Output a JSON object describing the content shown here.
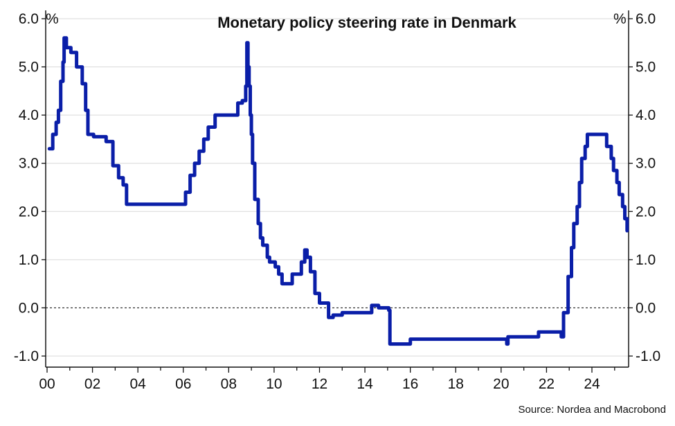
{
  "chart_data": {
    "type": "line",
    "title": "Monetary policy steering rate in Denmark",
    "source": "Source: Nordea and Macrobond",
    "y_unit_left": "%",
    "y_unit_right": "%",
    "ylim": [
      -1.0,
      6.0
    ],
    "y_ticks": [
      -1.0,
      0.0,
      1.0,
      2.0,
      3.0,
      4.0,
      5.0,
      6.0
    ],
    "y_tick_labels": [
      "-1.0",
      "0.0",
      "1.0",
      "2.0",
      "3.0",
      "4.0",
      "5.0",
      "6.0"
    ],
    "xlim": [
      2000,
      2025.7
    ],
    "x_ticks": [
      2000,
      2002,
      2004,
      2006,
      2008,
      2010,
      2012,
      2014,
      2016,
      2018,
      2020,
      2022,
      2024
    ],
    "x_tick_labels": [
      "00",
      "02",
      "04",
      "06",
      "08",
      "10",
      "12",
      "14",
      "16",
      "18",
      "20",
      "22",
      "24"
    ],
    "grid": true,
    "zero_line": "dashed",
    "line_color": "#0a1ea8",
    "series": [
      {
        "x": [
          2000.1,
          2000.25,
          2000.4,
          2000.5,
          2000.6,
          2000.7,
          2000.75,
          2000.85,
          2001.05,
          2001.3,
          2001.55,
          2001.7,
          2001.8,
          2002.05,
          2002.6,
          2002.9,
          2003.15,
          2003.35,
          2003.5,
          2005.9,
          2006.1,
          2006.3,
          2006.5,
          2006.7,
          2006.9,
          2007.1,
          2007.4,
          2008.4,
          2008.6,
          2008.75,
          2008.8,
          2008.85,
          2008.9,
          2008.95,
          2009.0,
          2009.05,
          2009.15,
          2009.3,
          2009.4,
          2009.5,
          2009.7,
          2009.8,
          2009.9,
          2010.05,
          2010.2,
          2010.35,
          2010.45,
          2010.8,
          2011.2,
          2011.35,
          2011.45,
          2011.6,
          2011.8,
          2012.0,
          2012.4,
          2012.6,
          2013.0,
          2013.8,
          2014.3,
          2014.6,
          2015.05,
          2015.1,
          2015.2,
          2016.0,
          2019.75,
          2020.25,
          2020.3,
          2021.25,
          2021.65,
          2022.65,
          2022.75,
          2022.95,
          2023.1,
          2023.2,
          2023.35,
          2023.45,
          2023.55,
          2023.7,
          2023.8,
          2024.5,
          2024.65,
          2024.85,
          2024.95,
          2025.1,
          2025.2,
          2025.35,
          2025.45,
          2025.55
        ],
        "y": [
          3.3,
          3.6,
          3.85,
          4.1,
          4.7,
          5.1,
          5.6,
          5.4,
          5.3,
          5.0,
          4.65,
          4.1,
          3.6,
          3.55,
          3.45,
          2.95,
          2.7,
          2.55,
          2.15,
          2.15,
          2.4,
          2.75,
          3.0,
          3.25,
          3.5,
          3.75,
          4.0,
          4.25,
          4.3,
          4.6,
          5.5,
          5.0,
          4.6,
          4.0,
          3.6,
          3.0,
          2.25,
          1.75,
          1.45,
          1.3,
          1.05,
          0.95,
          0.95,
          0.85,
          0.7,
          0.5,
          0.5,
          0.7,
          0.95,
          1.2,
          1.05,
          0.75,
          0.3,
          0.1,
          -0.2,
          -0.15,
          -0.1,
          -0.1,
          0.05,
          0.0,
          -0.05,
          -0.75,
          -0.75,
          -0.65,
          -0.65,
          -0.75,
          -0.6,
          -0.6,
          -0.5,
          -0.6,
          -0.1,
          0.65,
          1.25,
          1.75,
          2.1,
          2.6,
          3.1,
          3.35,
          3.6,
          3.6,
          3.35,
          3.1,
          2.85,
          2.6,
          2.35,
          2.1,
          1.85,
          1.6
        ]
      }
    ]
  }
}
